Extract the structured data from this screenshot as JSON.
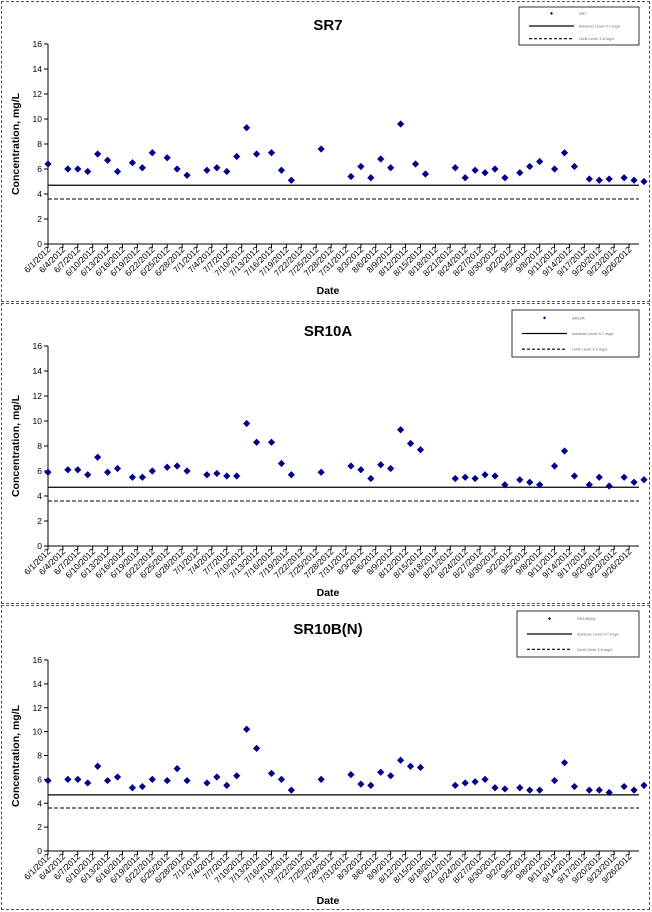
{
  "chart_data": [
    {
      "type": "scatter",
      "title": "SR7",
      "xlabel": "Date",
      "ylabel": "Concentration, mg/L",
      "ylim": [
        0,
        16
      ],
      "yticks": [
        0,
        2,
        4,
        6,
        8,
        10,
        12,
        14,
        16
      ],
      "x_tick_labels": [
        "6/1/2012",
        "6/4/2012",
        "6/7/2012",
        "6/10/2012",
        "6/13/2012",
        "6/16/2012",
        "6/19/2012",
        "6/22/2012",
        "6/25/2012",
        "6/28/2012",
        "7/1/2012",
        "7/4/2012",
        "7/7/2012",
        "7/10/2012",
        "7/13/2012",
        "7/16/2012",
        "7/19/2012",
        "7/22/2012",
        "7/25/2012",
        "7/28/2012",
        "7/31/2012",
        "8/3/2012",
        "8/6/2012",
        "8/9/2012",
        "8/12/2012",
        "8/15/2012",
        "8/18/2012",
        "8/21/2012",
        "8/24/2012",
        "8/27/2012",
        "8/30/2012",
        "9/2/2012",
        "9/5/2012",
        "9/8/2012",
        "9/11/2012",
        "9/14/2012",
        "9/17/2012",
        "9/20/2012",
        "9/23/2012",
        "9/26/2012"
      ],
      "x_start": "6/1/2012",
      "x_end": "9/28/2012",
      "legend_position": "top-right",
      "series": [
        {
          "name": "SR7",
          "marker": "diamond",
          "color": "#00008B",
          "x": [
            "6/1/2012",
            "6/5/2012",
            "6/7/2012",
            "6/9/2012",
            "6/11/2012",
            "6/13/2012",
            "6/15/2012",
            "6/18/2012",
            "6/20/2012",
            "6/22/2012",
            "6/25/2012",
            "6/27/2012",
            "6/29/2012",
            "7/3/2012",
            "7/5/2012",
            "7/7/2012",
            "7/9/2012",
            "7/11/2012",
            "7/13/2012",
            "7/16/2012",
            "7/18/2012",
            "7/20/2012",
            "7/26/2012",
            "8/1/2012",
            "8/3/2012",
            "8/5/2012",
            "8/7/2012",
            "8/9/2012",
            "8/11/2012",
            "8/14/2012",
            "8/16/2012",
            "8/22/2012",
            "8/24/2012",
            "8/26/2012",
            "8/28/2012",
            "8/30/2012",
            "9/1/2012",
            "9/4/2012",
            "9/6/2012",
            "9/8/2012",
            "9/11/2012",
            "9/13/2012",
            "9/15/2012",
            "9/18/2012",
            "9/20/2012",
            "9/22/2012",
            "9/25/2012",
            "9/27/2012",
            "9/29/2012"
          ],
          "y": [
            6.4,
            6.0,
            6.0,
            5.8,
            7.2,
            6.7,
            5.8,
            6.5,
            6.1,
            7.3,
            6.9,
            6.0,
            5.5,
            5.9,
            6.1,
            5.8,
            7.0,
            9.3,
            7.2,
            7.3,
            5.9,
            5.1,
            7.6,
            5.4,
            6.2,
            5.3,
            6.8,
            6.1,
            9.6,
            6.4,
            5.6,
            6.1,
            5.3,
            5.9,
            5.7,
            6.0,
            5.3,
            5.7,
            6.2,
            6.6,
            6.0,
            7.3,
            6.2,
            5.2,
            5.1,
            5.2,
            5.3,
            5.1,
            5.0
          ]
        },
        {
          "name": "Adverse Level 4.7 mg/L",
          "type": "hline",
          "y": 4.7,
          "style": "solid"
        },
        {
          "name": "Limit Level 3.6 mg/L",
          "type": "hline",
          "y": 3.6,
          "style": "dashed"
        }
      ]
    },
    {
      "type": "scatter",
      "title": "SR10A",
      "xlabel": "Date",
      "ylabel": "Concentration, mg/L",
      "ylim": [
        0,
        16
      ],
      "yticks": [
        0,
        2,
        4,
        6,
        8,
        10,
        12,
        14,
        16
      ],
      "x_tick_labels": [
        "6/1/2012",
        "6/4/2012",
        "6/7/2012",
        "6/10/2012",
        "6/13/2012",
        "6/16/2012",
        "6/19/2012",
        "6/22/2012",
        "6/25/2012",
        "6/28/2012",
        "7/1/2012",
        "7/4/2012",
        "7/7/2012",
        "7/10/2012",
        "7/13/2012",
        "7/16/2012",
        "7/19/2012",
        "7/22/2012",
        "7/25/2012",
        "7/28/2012",
        "7/31/2012",
        "8/3/2012",
        "8/6/2012",
        "8/9/2012",
        "8/12/2012",
        "8/15/2012",
        "8/18/2012",
        "8/21/2012",
        "8/24/2012",
        "8/27/2012",
        "8/30/2012",
        "9/2/2012",
        "9/5/2012",
        "9/8/2012",
        "9/11/2012",
        "9/14/2012",
        "9/17/2012",
        "9/20/2012",
        "9/23/2012",
        "9/26/2012"
      ],
      "x_start": "6/1/2012",
      "x_end": "9/28/2012",
      "legend_position": "top-right",
      "series": [
        {
          "name": "SR10A",
          "marker": "diamond",
          "color": "#00008B",
          "x": [
            "6/1/2012",
            "6/5/2012",
            "6/7/2012",
            "6/9/2012",
            "6/11/2012",
            "6/13/2012",
            "6/15/2012",
            "6/18/2012",
            "6/20/2012",
            "6/22/2012",
            "6/25/2012",
            "6/27/2012",
            "6/29/2012",
            "7/3/2012",
            "7/5/2012",
            "7/7/2012",
            "7/9/2012",
            "7/11/2012",
            "7/13/2012",
            "7/16/2012",
            "7/18/2012",
            "7/20/2012",
            "7/26/2012",
            "8/1/2012",
            "8/3/2012",
            "8/5/2012",
            "8/7/2012",
            "8/9/2012",
            "8/11/2012",
            "8/13/2012",
            "8/15/2012",
            "8/22/2012",
            "8/24/2012",
            "8/26/2012",
            "8/28/2012",
            "8/30/2012",
            "9/1/2012",
            "9/4/2012",
            "9/6/2012",
            "9/8/2012",
            "9/11/2012",
            "9/13/2012",
            "9/15/2012",
            "9/18/2012",
            "9/20/2012",
            "9/22/2012",
            "9/25/2012",
            "9/27/2012",
            "9/29/2012"
          ],
          "y": [
            5.9,
            6.1,
            6.1,
            5.7,
            7.1,
            5.9,
            6.2,
            5.5,
            5.5,
            6.0,
            6.3,
            6.4,
            6.0,
            5.7,
            5.8,
            5.6,
            5.6,
            9.8,
            8.3,
            8.3,
            6.6,
            5.7,
            5.9,
            6.4,
            6.1,
            5.4,
            6.5,
            6.2,
            9.3,
            8.2,
            7.7,
            5.4,
            5.5,
            5.4,
            5.7,
            5.6,
            4.9,
            5.3,
            5.1,
            4.9,
            6.4,
            7.6,
            5.6,
            4.9,
            5.5,
            4.8,
            5.5,
            5.1,
            5.3
          ]
        },
        {
          "name": "Adverse Level 4.7 mg/L",
          "type": "hline",
          "y": 4.7,
          "style": "solid"
        },
        {
          "name": "Limit Level 3.6 mg/L",
          "type": "hline",
          "y": 3.6,
          "style": "dashed"
        }
      ]
    },
    {
      "type": "scatter",
      "title": "SR10B(N)",
      "xlabel": "Date",
      "ylabel": "Concentration, mg/L",
      "ylim": [
        0,
        16
      ],
      "yticks": [
        0,
        2,
        4,
        6,
        8,
        10,
        12,
        14,
        16
      ],
      "x_tick_labels": [
        "6/1/2012",
        "6/4/2012",
        "6/7/2012",
        "6/10/2012",
        "6/13/2012",
        "6/16/2012",
        "6/19/2012",
        "6/22/2012",
        "6/25/2012",
        "6/28/2012",
        "7/1/2012",
        "7/4/2012",
        "7/7/2012",
        "7/10/2012",
        "7/13/2012",
        "7/16/2012",
        "7/19/2012",
        "7/22/2012",
        "7/25/2012",
        "7/28/2012",
        "7/31/2012",
        "8/3/2012",
        "8/6/2012",
        "8/9/2012",
        "8/12/2012",
        "8/15/2012",
        "8/18/2012",
        "8/21/2012",
        "8/24/2012",
        "8/27/2012",
        "8/30/2012",
        "9/2/2012",
        "9/5/2012",
        "9/8/2012",
        "9/11/2012",
        "9/14/2012",
        "9/17/2012",
        "9/20/2012",
        "9/23/2012",
        "9/26/2012"
      ],
      "x_start": "6/1/2012",
      "x_end": "9/28/2012",
      "legend_position": "top-right",
      "series": [
        {
          "name": "SR10B(N)",
          "marker": "diamond",
          "color": "#00008B",
          "x": [
            "6/1/2012",
            "6/5/2012",
            "6/7/2012",
            "6/9/2012",
            "6/11/2012",
            "6/13/2012",
            "6/15/2012",
            "6/18/2012",
            "6/20/2012",
            "6/22/2012",
            "6/25/2012",
            "6/27/2012",
            "6/29/2012",
            "7/3/2012",
            "7/5/2012",
            "7/7/2012",
            "7/9/2012",
            "7/11/2012",
            "7/13/2012",
            "7/16/2012",
            "7/18/2012",
            "7/20/2012",
            "7/26/2012",
            "8/1/2012",
            "8/3/2012",
            "8/5/2012",
            "8/7/2012",
            "8/9/2012",
            "8/11/2012",
            "8/13/2012",
            "8/15/2012",
            "8/22/2012",
            "8/24/2012",
            "8/26/2012",
            "8/28/2012",
            "8/30/2012",
            "9/1/2012",
            "9/4/2012",
            "9/6/2012",
            "9/8/2012",
            "9/11/2012",
            "9/13/2012",
            "9/15/2012",
            "9/18/2012",
            "9/20/2012",
            "9/22/2012",
            "9/25/2012",
            "9/27/2012",
            "9/29/2012"
          ],
          "y": [
            5.9,
            6.0,
            6.0,
            5.7,
            7.1,
            5.9,
            6.2,
            5.3,
            5.4,
            6.0,
            5.9,
            6.9,
            5.9,
            5.7,
            6.2,
            5.5,
            6.3,
            10.2,
            8.6,
            6.5,
            6.0,
            5.1,
            6.0,
            6.4,
            5.6,
            5.5,
            6.6,
            6.3,
            7.6,
            7.1,
            7.0,
            5.5,
            5.7,
            5.8,
            6.0,
            5.3,
            5.2,
            5.3,
            5.1,
            5.1,
            5.9,
            7.4,
            5.4,
            5.1,
            5.1,
            4.9,
            5.4,
            5.1,
            5.5
          ]
        },
        {
          "name": "Adverse Level 4.7 mg/L",
          "type": "hline",
          "y": 4.7,
          "style": "solid"
        },
        {
          "name": "Limit Level 3.6 mg/L",
          "type": "hline",
          "y": 3.6,
          "style": "dashed"
        }
      ]
    }
  ]
}
